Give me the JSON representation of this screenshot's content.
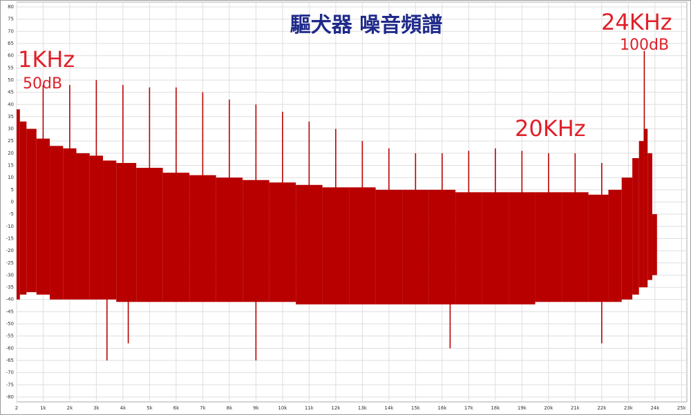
{
  "chart_data": {
    "type": "spectrum",
    "title": "驅犬器 噪音頻譜",
    "annotations": [
      "1KHz",
      "50dB",
      "20KHz",
      "24KHz",
      "100dB"
    ],
    "color": "#b80000",
    "x": [
      2,
      250,
      500,
      1000,
      1500,
      2000,
      2500,
      3000,
      3500,
      4000,
      5000,
      6000,
      7000,
      8000,
      9000,
      10000,
      11000,
      12000,
      13000,
      14000,
      15000,
      16000,
      17000,
      18000,
      19000,
      20000,
      21000,
      22000,
      22500,
      23000,
      23300,
      23500,
      23650,
      23800,
      24000
    ],
    "upper": [
      38,
      33,
      30,
      26,
      23,
      22,
      20,
      19,
      17,
      16,
      14,
      12,
      11,
      10,
      9,
      8,
      7,
      6,
      6,
      5,
      5,
      5,
      4,
      4,
      4,
      4,
      4,
      3,
      5,
      10,
      18,
      25,
      30,
      20,
      -5
    ],
    "lower": [
      -40,
      -38,
      -37,
      -38,
      -40,
      -40,
      -40,
      -40,
      -40,
      -41,
      -41,
      -41,
      -41,
      -41,
      -41,
      -41,
      -42,
      -42,
      -42,
      -42,
      -42,
      -42,
      -42,
      -42,
      -42,
      -41,
      -41,
      -41,
      -41,
      -40,
      -38,
      -35,
      -35,
      -32,
      -30
    ],
    "peaks": {
      "x": [
        1000,
        2000,
        3000,
        4000,
        5000,
        6000,
        7000,
        8000,
        9000,
        10000,
        11000,
        12000,
        13000,
        14000,
        15000,
        16000,
        17000,
        18000,
        19000,
        20000,
        21000,
        22000,
        23600
      ],
      "values": [
        48,
        48,
        50,
        48,
        47,
        47,
        45,
        42,
        40,
        37,
        33,
        30,
        25,
        22,
        20,
        20,
        21,
        22,
        21,
        20,
        20,
        16,
        62
      ]
    },
    "dips": {
      "x": [
        3400,
        4200,
        9000,
        16300,
        22000
      ],
      "values": [
        -65,
        -58,
        -65,
        -60,
        -58
      ]
    },
    "xlim": [
      2,
      25200
    ],
    "ylim": [
      -82,
      82
    ],
    "xticks": [
      2,
      {
        "value": 1000,
        "label": "1k"
      },
      {
        "value": 2000,
        "label": "2k"
      },
      {
        "value": 3000,
        "label": "3k"
      },
      {
        "value": 4000,
        "label": "4k"
      },
      {
        "value": 5000,
        "label": "5k"
      },
      {
        "value": 6000,
        "label": "6k"
      },
      {
        "value": 7000,
        "label": "7k"
      },
      {
        "value": 8000,
        "label": "8k"
      },
      {
        "value": 9000,
        "label": "9k"
      },
      {
        "value": 10000,
        "label": "10k"
      },
      {
        "value": 11000,
        "label": "11k"
      },
      {
        "value": 12000,
        "label": "12k"
      },
      {
        "value": 13000,
        "label": "13k"
      },
      {
        "value": 14000,
        "label": "14k"
      },
      {
        "value": 15000,
        "label": "15k"
      },
      {
        "value": 16000,
        "label": "16k"
      },
      {
        "value": 17000,
        "label": "17k"
      },
      {
        "value": 18000,
        "label": "18k"
      },
      {
        "value": 19000,
        "label": "19k"
      },
      {
        "value": 20000,
        "label": "20k"
      },
      {
        "value": 21000,
        "label": "21k"
      },
      {
        "value": 22000,
        "label": "22k"
      },
      {
        "value": 23000,
        "label": "23k"
      },
      {
        "value": 24000,
        "label": "24k"
      },
      {
        "value": 25000,
        "label": "25k"
      }
    ],
    "yticks": [
      -80,
      -75,
      -70,
      -65,
      -60,
      -55,
      -50,
      -45,
      -40,
      -35,
      -30,
      -25,
      -20,
      -15,
      -10,
      -5,
      0,
      5,
      10,
      15,
      20,
      25,
      30,
      35,
      40,
      45,
      50,
      55,
      60,
      65,
      70,
      75,
      80
    ],
    "grid": true
  }
}
